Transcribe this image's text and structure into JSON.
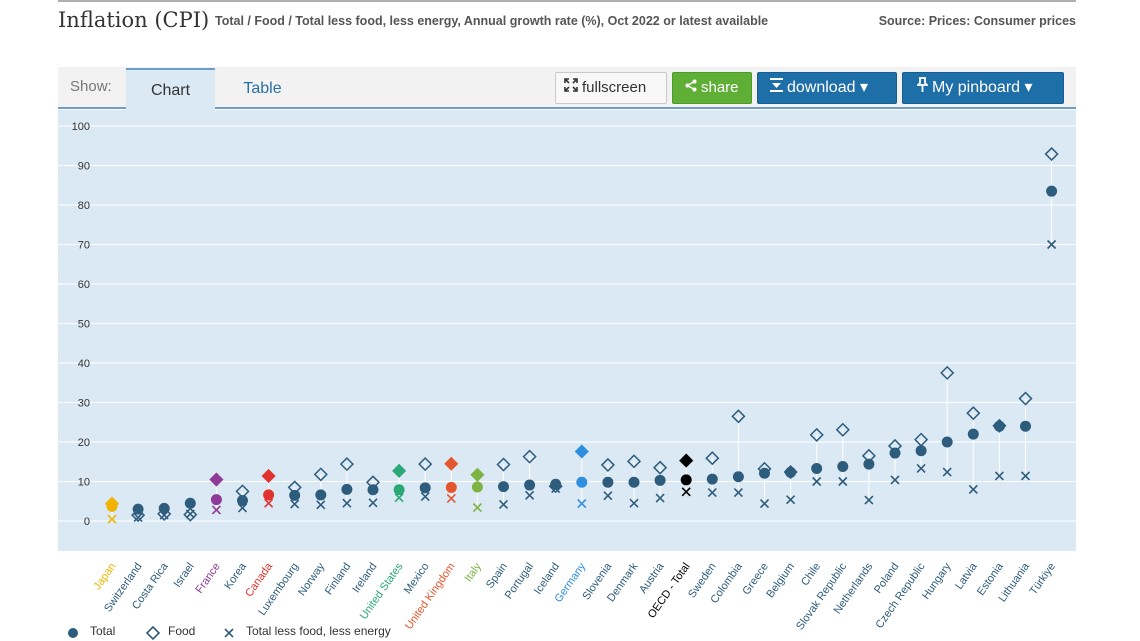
{
  "header": {
    "title": "Inflation (CPI)",
    "subtitle": "Total / Food / Total less food, less energy, Annual growth rate (%), Oct 2022 or latest available",
    "source": "Source: Prices: Consumer prices"
  },
  "toolbar": {
    "show_label": "Show:",
    "tabs": [
      "Chart",
      "Table"
    ],
    "fullscreen": "fullscreen",
    "share": "share",
    "download": "download ▾",
    "pinboard": "My pinboard ▾"
  },
  "colors": {
    "total": "#2e5c7c",
    "food": "#2e5c7c",
    "core": "#2e5c7c",
    "stem": "#ffffff",
    "grid": "#ffffff",
    "axis_text": "#333333",
    "japan": "#f0b400",
    "france": "#8e3a96",
    "canada": "#e0332d",
    "united_states": "#2aa876",
    "united_kingdom": "#e4572e",
    "italy": "#7cb342",
    "germany": "#2f8fde",
    "oecd_total": "#000000"
  },
  "legend": {
    "total": "Total",
    "food": "Food",
    "core": "Total less food, less energy"
  },
  "chart_data": {
    "type": "scatter",
    "ylim": [
      0,
      100
    ],
    "yticks": [
      0,
      10,
      20,
      30,
      40,
      50,
      60,
      70,
      80,
      90,
      100
    ],
    "categories": [
      "Japan",
      "Switzerland",
      "Costa Rica",
      "Israel",
      "France",
      "Korea",
      "Canada",
      "Luxembourg",
      "Norway",
      "Finland",
      "Ireland",
      "United States",
      "Mexico",
      "United Kingdom",
      "Italy",
      "Spain",
      "Portugal",
      "Iceland",
      "Germany",
      "Slovenia",
      "Denmark",
      "Austria",
      "OECD - Total",
      "Sweden",
      "Colombia",
      "Greece",
      "Belgium",
      "Chile",
      "Slovak Republic",
      "Netherlands",
      "Poland",
      "Czech Republic",
      "Hungary",
      "Latvia",
      "Estonia",
      "Lithuania",
      "Türkiye"
    ],
    "highlight": {
      "Japan": "#f0b400",
      "France": "#8e3a96",
      "Canada": "#e0332d",
      "United States": "#2aa876",
      "United Kingdom": "#e4572e",
      "Italy": "#7cb342",
      "Germany": "#2f8fde",
      "OECD - Total": "#000000"
    },
    "series": [
      {
        "name": "Total",
        "marker": "circle",
        "values": [
          3.7,
          3.0,
          3.2,
          4.5,
          5.4,
          5.2,
          6.6,
          6.5,
          6.6,
          8.0,
          7.9,
          7.9,
          8.4,
          8.5,
          8.6,
          8.7,
          9.1,
          9.3,
          9.8,
          9.8,
          9.8,
          10.3,
          10.4,
          10.6,
          11.2,
          12.1,
          12.3,
          13.3,
          13.8,
          14.4,
          17.2,
          17.8,
          20.0,
          22.0,
          24.0,
          24.0,
          83.5
        ]
      },
      {
        "name": "Food",
        "marker": "diamond",
        "values": [
          4.4,
          1.5,
          1.8,
          1.6,
          10.5,
          7.5,
          11.4,
          8.5,
          11.8,
          14.4,
          9.8,
          12.7,
          14.4,
          14.5,
          11.7,
          14.3,
          16.3,
          8.8,
          17.6,
          14.2,
          15.1,
          13.5,
          15.3,
          15.9,
          26.5,
          13.2,
          12.4,
          21.8,
          23.1,
          16.5,
          19.0,
          20.6,
          37.5,
          27.3,
          24.1,
          31.0,
          92.9
        ]
      },
      {
        "name": "Total less food, less energy",
        "marker": "x",
        "values": [
          0.5,
          0.9,
          1.5,
          1.8,
          2.8,
          3.3,
          4.5,
          4.3,
          4.1,
          4.5,
          4.6,
          5.9,
          6.2,
          5.7,
          3.4,
          4.2,
          6.5,
          8.2,
          4.4,
          6.4,
          4.5,
          5.8,
          7.4,
          7.2,
          7.2,
          4.4,
          5.4,
          10.0,
          10.0,
          5.3,
          10.4,
          13.3,
          12.4,
          8.0,
          11.4,
          11.4,
          70.0
        ]
      }
    ]
  }
}
